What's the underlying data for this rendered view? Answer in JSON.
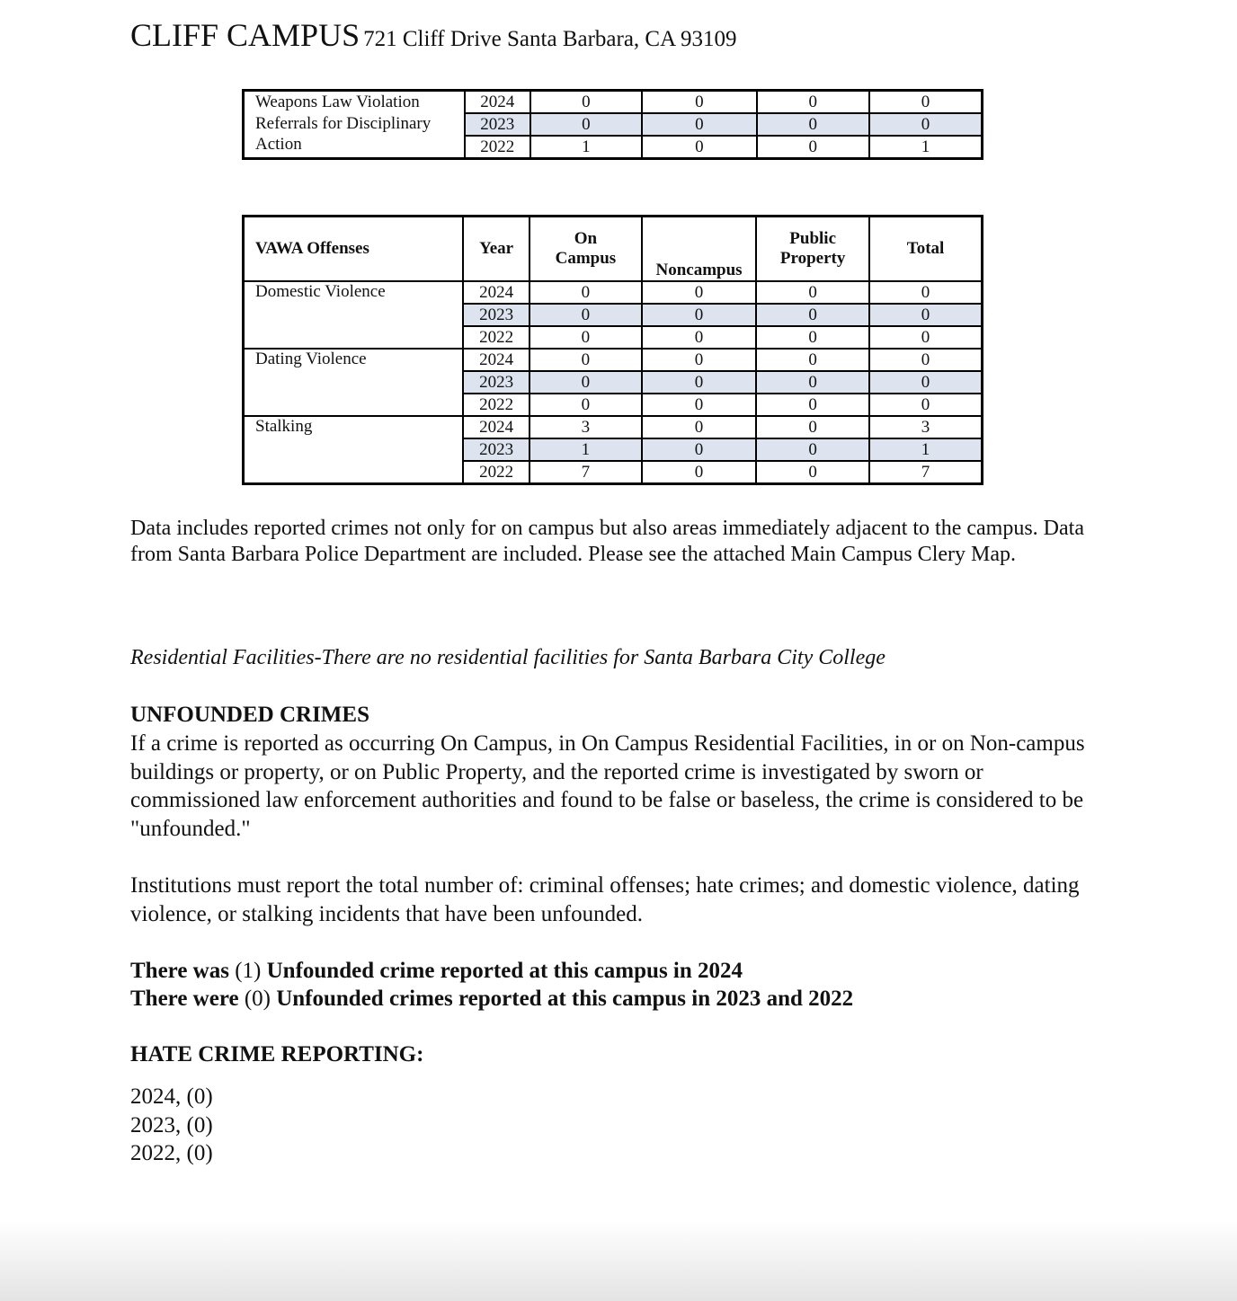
{
  "header": {
    "campus": "CLIFF CAMPUS",
    "address": "721 Cliff Drive Santa Barbara, CA 93109"
  },
  "weapons_table": {
    "label": "Weapons Law Violation Referrals for Disciplinary Action",
    "rows": [
      {
        "year": "2024",
        "on_campus": "0",
        "noncampus": "0",
        "public_property": "0",
        "total": "0"
      },
      {
        "year": "2023",
        "on_campus": "0",
        "noncampus": "0",
        "public_property": "0",
        "total": "0"
      },
      {
        "year": "2022",
        "on_campus": "1",
        "noncampus": "0",
        "public_property": "0",
        "total": "1"
      }
    ]
  },
  "vawa_table": {
    "headers": {
      "offense": "VAWA Offenses",
      "year": "Year",
      "on_campus": "On Campus",
      "noncampus": "Noncampus",
      "public_property": "Public Property",
      "total": "Total"
    },
    "offenses": [
      {
        "name": "Domestic Violence",
        "rows": [
          {
            "year": "2024",
            "on_campus": "0",
            "noncampus": "0",
            "public_property": "0",
            "total": "0"
          },
          {
            "year": "2023",
            "on_campus": "0",
            "noncampus": "0",
            "public_property": "0",
            "total": "0"
          },
          {
            "year": "2022",
            "on_campus": "0",
            "noncampus": "0",
            "public_property": "0",
            "total": "0"
          }
        ]
      },
      {
        "name": "Dating Violence",
        "rows": [
          {
            "year": "2024",
            "on_campus": "0",
            "noncampus": "0",
            "public_property": "0",
            "total": "0"
          },
          {
            "year": "2023",
            "on_campus": "0",
            "noncampus": "0",
            "public_property": "0",
            "total": "0"
          },
          {
            "year": "2022",
            "on_campus": "0",
            "noncampus": "0",
            "public_property": "0",
            "total": "0"
          }
        ]
      },
      {
        "name": "Stalking",
        "rows": [
          {
            "year": "2024",
            "on_campus": "3",
            "noncampus": "0",
            "public_property": "0",
            "total": "3"
          },
          {
            "year": "2023",
            "on_campus": "1",
            "noncampus": "0",
            "public_property": "0",
            "total": "1"
          },
          {
            "year": "2022",
            "on_campus": "7",
            "noncampus": "0",
            "public_property": "0",
            "total": "7"
          }
        ]
      }
    ]
  },
  "note": "Data includes reported crimes not only for on campus but also areas immediately adjacent to the campus. Data from Santa Barbara Police Department are included.  Please see the attached Main Campus Clery Map.",
  "residential": "Residential Facilities-There are no residential facilities for Santa Barbara City College",
  "unfounded": {
    "heading": "UNFOUNDED CRIMES",
    "para1": "If a crime is reported as occurring On Campus, in On Campus Residential Facilities, in or on Non-campus buildings or property, or on Public Property, and the reported crime is investigated by sworn or commissioned law enforcement authorities and found to be false or baseless, the crime is considered to be \"unfounded.\"",
    "para2": "Institutions must report the total number of: criminal offenses; hate crimes; and domestic violence, dating violence, or stalking incidents that have been unfounded.",
    "line1_a": "There was ",
    "line1_b": "(1)",
    "line1_c": " Unfounded crime reported at this campus in 2024",
    "line2_a": "There were ",
    "line2_b": "(0)",
    "line2_c": " Unfounded crimes reported at this campus in 2023 and 2022"
  },
  "hate": {
    "heading": "HATE CRIME REPORTING:",
    "lines": [
      "2024, (0)",
      "2023, (0)",
      "2022, (0)"
    ]
  }
}
